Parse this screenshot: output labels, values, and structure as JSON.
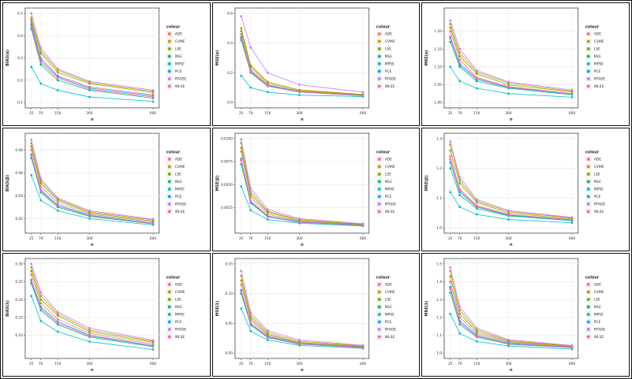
{
  "figure": {
    "background": "#ffffff",
    "x_label": "n",
    "x_ticks": [
      25,
      70,
      150,
      300,
      600
    ],
    "legend_title": "colour",
    "series_names": [
      "ADE",
      "CVME",
      "LSE",
      "MLE",
      "MPSE",
      "PCE",
      "RTADE",
      "WLSE"
    ],
    "series_colors": [
      "#F8766D",
      "#CD9600",
      "#7CAE00",
      "#00BE67",
      "#00BFC4",
      "#00A9FF",
      "#C77CFF",
      "#FF61CC"
    ],
    "grid_color": "#ebebeb",
    "panel_border_color": "#2b2b2b"
  },
  "chart_data": [
    {
      "type": "line",
      "title": "",
      "xlabel": "n",
      "ylabel": "BIAS(α)",
      "x": [
        25,
        70,
        150,
        300,
        600
      ],
      "ylim": [
        0.1,
        0.5
      ],
      "yticks": [
        0.1,
        0.2,
        0.3,
        0.4,
        0.5
      ],
      "ydecimals": 1,
      "series": [
        {
          "name": "ADE",
          "values": [
            0.46,
            0.3,
            0.22,
            0.17,
            0.135
          ]
        },
        {
          "name": "CVME",
          "values": [
            0.48,
            0.33,
            0.245,
            0.19,
            0.15
          ]
        },
        {
          "name": "LSE",
          "values": [
            0.47,
            0.32,
            0.235,
            0.185,
            0.145
          ]
        },
        {
          "name": "MLE",
          "values": [
            0.43,
            0.27,
            0.2,
            0.155,
            0.12
          ]
        },
        {
          "name": "MPSE",
          "values": [
            0.26,
            0.185,
            0.155,
            0.125,
            0.105
          ]
        },
        {
          "name": "PCE",
          "values": [
            0.45,
            0.29,
            0.215,
            0.165,
            0.13
          ]
        },
        {
          "name": "RTADE",
          "values": [
            0.5,
            0.345,
            0.25,
            0.195,
            0.155
          ]
        },
        {
          "name": "WLSE",
          "values": [
            0.44,
            0.28,
            0.21,
            0.16,
            0.125
          ]
        }
      ]
    },
    {
      "type": "line",
      "title": "",
      "xlabel": "n",
      "ylabel": "MSE(α)",
      "x": [
        25,
        70,
        150,
        300,
        600
      ],
      "ylim": [
        0.0,
        0.6
      ],
      "yticks": [
        0.0,
        0.2,
        0.4,
        0.6
      ],
      "ydecimals": 1,
      "series": [
        {
          "name": "ADE",
          "values": [
            0.46,
            0.22,
            0.12,
            0.075,
            0.05
          ]
        },
        {
          "name": "CVME",
          "values": [
            0.5,
            0.25,
            0.14,
            0.085,
            0.055
          ]
        },
        {
          "name": "LSE",
          "values": [
            0.48,
            0.24,
            0.13,
            0.08,
            0.052
          ]
        },
        {
          "name": "MLE",
          "values": [
            0.42,
            0.2,
            0.11,
            0.07,
            0.045
          ]
        },
        {
          "name": "MPSE",
          "values": [
            0.18,
            0.1,
            0.07,
            0.05,
            0.04
          ]
        },
        {
          "name": "PCE",
          "values": [
            0.44,
            0.21,
            0.115,
            0.072,
            0.047
          ]
        },
        {
          "name": "RTADE",
          "values": [
            0.58,
            0.37,
            0.2,
            0.12,
            0.07
          ]
        },
        {
          "name": "WLSE",
          "values": [
            0.43,
            0.205,
            0.112,
            0.071,
            0.046
          ]
        }
      ]
    },
    {
      "type": "line",
      "title": "",
      "xlabel": "n",
      "ylabel": "MRE(α)",
      "x": [
        25,
        70,
        150,
        300,
        600
      ],
      "ylim": [
        1.0,
        1.25
      ],
      "yticks": [
        1.0,
        1.05,
        1.1,
        1.15,
        1.2
      ],
      "ydecimals": 2,
      "series": [
        {
          "name": "ADE",
          "values": [
            1.2,
            1.12,
            1.07,
            1.045,
            1.025
          ]
        },
        {
          "name": "CVME",
          "values": [
            1.22,
            1.14,
            1.085,
            1.055,
            1.032
          ]
        },
        {
          "name": "LSE",
          "values": [
            1.21,
            1.13,
            1.08,
            1.05,
            1.03
          ]
        },
        {
          "name": "MLE",
          "values": [
            1.17,
            1.1,
            1.06,
            1.04,
            1.022
          ]
        },
        {
          "name": "MPSE",
          "values": [
            1.1,
            1.06,
            1.04,
            1.025,
            1.015
          ]
        },
        {
          "name": "PCE",
          "values": [
            1.18,
            1.105,
            1.065,
            1.042,
            1.024
          ]
        },
        {
          "name": "RTADE",
          "values": [
            1.23,
            1.15,
            1.09,
            1.058,
            1.035
          ]
        },
        {
          "name": "WLSE",
          "values": [
            1.185,
            1.11,
            1.068,
            1.043,
            1.025
          ]
        }
      ]
    },
    {
      "type": "line",
      "title": "",
      "xlabel": "n",
      "ylabel": "BIAS(β)",
      "x": [
        25,
        70,
        150,
        300,
        600
      ],
      "ylim": [
        0.012,
        0.09
      ],
      "yticks": [
        0.02,
        0.04,
        0.06,
        0.08
      ],
      "ydecimals": 2,
      "series": [
        {
          "name": "ADE",
          "values": [
            0.08,
            0.048,
            0.034,
            0.024,
            0.017
          ]
        },
        {
          "name": "CVME",
          "values": [
            0.086,
            0.053,
            0.037,
            0.026,
            0.019
          ]
        },
        {
          "name": "LSE",
          "values": [
            0.083,
            0.051,
            0.036,
            0.025,
            0.018
          ]
        },
        {
          "name": "MLE",
          "values": [
            0.073,
            0.043,
            0.03,
            0.022,
            0.0155
          ]
        },
        {
          "name": "MPSE",
          "values": [
            0.058,
            0.036,
            0.027,
            0.02,
            0.0145
          ]
        },
        {
          "name": "PCE",
          "values": [
            0.076,
            0.045,
            0.032,
            0.023,
            0.016
          ]
        },
        {
          "name": "RTADE",
          "values": [
            0.089,
            0.055,
            0.038,
            0.027,
            0.0195
          ]
        },
        {
          "name": "WLSE",
          "values": [
            0.075,
            0.044,
            0.031,
            0.0225,
            0.0158
          ]
        }
      ]
    },
    {
      "type": "line",
      "title": "",
      "xlabel": "n",
      "ylabel": "MSE(β)",
      "x": [
        25,
        70,
        150,
        300,
        600
      ],
      "ylim": [
        0.0003,
        0.01
      ],
      "yticks": [
        0.0025,
        0.005,
        0.0075,
        0.01
      ],
      "ydecimals": 4,
      "series": [
        {
          "name": "ADE",
          "values": [
            0.0086,
            0.0036,
            0.0018,
            0.001,
            0.0006
          ]
        },
        {
          "name": "CVME",
          "values": [
            0.0095,
            0.0042,
            0.0021,
            0.0012,
            0.0007
          ]
        },
        {
          "name": "LSE",
          "values": [
            0.009,
            0.0039,
            0.002,
            0.0011,
            0.00065
          ]
        },
        {
          "name": "MLE",
          "values": [
            0.0072,
            0.003,
            0.0015,
            0.0009,
            0.00055
          ]
        },
        {
          "name": "MPSE",
          "values": [
            0.0048,
            0.0022,
            0.0012,
            0.0008,
            0.0005
          ]
        },
        {
          "name": "PCE",
          "values": [
            0.0078,
            0.0032,
            0.0016,
            0.00095,
            0.00058
          ]
        },
        {
          "name": "RTADE",
          "values": [
            0.0099,
            0.0046,
            0.0023,
            0.0013,
            0.00075
          ]
        },
        {
          "name": "WLSE",
          "values": [
            0.0076,
            0.0031,
            0.00155,
            0.00092,
            0.00057
          ]
        }
      ]
    },
    {
      "type": "line",
      "title": "",
      "xlabel": "n",
      "ylabel": "MRE(β)",
      "x": [
        25,
        70,
        150,
        300,
        600
      ],
      "ylim": [
        1.0,
        1.3
      ],
      "yticks": [
        1.0,
        1.1,
        1.2,
        1.3
      ],
      "ydecimals": 1,
      "series": [
        {
          "name": "ADE",
          "values": [
            1.24,
            1.13,
            1.075,
            1.045,
            1.027
          ]
        },
        {
          "name": "CVME",
          "values": [
            1.28,
            1.16,
            1.09,
            1.055,
            1.033
          ]
        },
        {
          "name": "LSE",
          "values": [
            1.26,
            1.15,
            1.085,
            1.05,
            1.03
          ]
        },
        {
          "name": "MLE",
          "values": [
            1.2,
            1.11,
            1.065,
            1.04,
            1.024
          ]
        },
        {
          "name": "MPSE",
          "values": [
            1.12,
            1.07,
            1.045,
            1.028,
            1.017
          ]
        },
        {
          "name": "PCE",
          "values": [
            1.22,
            1.12,
            1.07,
            1.042,
            1.025
          ]
        },
        {
          "name": "RTADE",
          "values": [
            1.29,
            1.17,
            1.095,
            1.058,
            1.035
          ]
        },
        {
          "name": "WLSE",
          "values": [
            1.23,
            1.125,
            1.072,
            1.044,
            1.026
          ]
        }
      ]
    },
    {
      "type": "line",
      "title": "",
      "xlabel": "n",
      "ylabel": "BIAS(λ)",
      "x": [
        25,
        70,
        150,
        300,
        600
      ],
      "ylim": [
        0.05,
        0.3
      ],
      "yticks": [
        0.1,
        0.15,
        0.2,
        0.25,
        0.3
      ],
      "ydecimals": 2,
      "series": [
        {
          "name": "ADE",
          "values": [
            0.27,
            0.19,
            0.145,
            0.105,
            0.075
          ]
        },
        {
          "name": "CVME",
          "values": [
            0.29,
            0.21,
            0.16,
            0.115,
            0.083
          ]
        },
        {
          "name": "LSE",
          "values": [
            0.28,
            0.2,
            0.155,
            0.11,
            0.08
          ]
        },
        {
          "name": "MLE",
          "values": [
            0.245,
            0.17,
            0.13,
            0.095,
            0.068
          ]
        },
        {
          "name": "MPSE",
          "values": [
            0.21,
            0.14,
            0.11,
            0.082,
            0.06
          ]
        },
        {
          "name": "PCE",
          "values": [
            0.255,
            0.18,
            0.138,
            0.1,
            0.071
          ]
        },
        {
          "name": "RTADE",
          "values": [
            0.3,
            0.22,
            0.165,
            0.12,
            0.086
          ]
        },
        {
          "name": "WLSE",
          "values": [
            0.25,
            0.175,
            0.134,
            0.098,
            0.07
          ]
        }
      ]
    },
    {
      "type": "line",
      "title": "",
      "xlabel": "n",
      "ylabel": "MSE(λ)",
      "x": [
        25,
        70,
        150,
        300,
        600
      ],
      "ylim": [
        0.0,
        0.15
      ],
      "yticks": [
        0.0,
        0.05,
        0.1,
        0.15
      ],
      "ydecimals": 2,
      "series": [
        {
          "name": "ADE",
          "values": [
            0.115,
            0.055,
            0.03,
            0.017,
            0.01
          ]
        },
        {
          "name": "CVME",
          "values": [
            0.13,
            0.063,
            0.035,
            0.02,
            0.012
          ]
        },
        {
          "name": "LSE",
          "values": [
            0.122,
            0.059,
            0.032,
            0.018,
            0.011
          ]
        },
        {
          "name": "MLE",
          "values": [
            0.1,
            0.047,
            0.026,
            0.015,
            0.009
          ]
        },
        {
          "name": "MPSE",
          "values": [
            0.075,
            0.037,
            0.022,
            0.013,
            0.008
          ]
        },
        {
          "name": "PCE",
          "values": [
            0.106,
            0.05,
            0.028,
            0.016,
            0.0095
          ]
        },
        {
          "name": "RTADE",
          "values": [
            0.138,
            0.068,
            0.038,
            0.022,
            0.013
          ]
        },
        {
          "name": "WLSE",
          "values": [
            0.104,
            0.049,
            0.027,
            0.0155,
            0.0092
          ]
        }
      ]
    },
    {
      "type": "line",
      "title": "",
      "xlabel": "n",
      "ylabel": "MRE(λ)",
      "x": [
        25,
        70,
        150,
        300,
        600
      ],
      "ylim": [
        1.0,
        1.5
      ],
      "yticks": [
        1.0,
        1.1,
        1.2,
        1.3,
        1.4,
        1.5
      ],
      "ydecimals": 1,
      "series": [
        {
          "name": "ADE",
          "values": [
            1.4,
            1.2,
            1.11,
            1.06,
            1.035
          ]
        },
        {
          "name": "CVME",
          "values": [
            1.46,
            1.24,
            1.13,
            1.07,
            1.04
          ]
        },
        {
          "name": "LSE",
          "values": [
            1.43,
            1.22,
            1.12,
            1.065,
            1.038
          ]
        },
        {
          "name": "MLE",
          "values": [
            1.34,
            1.16,
            1.09,
            1.05,
            1.03
          ]
        },
        {
          "name": "MPSE",
          "values": [
            1.22,
            1.11,
            1.065,
            1.04,
            1.022
          ]
        },
        {
          "name": "PCE",
          "values": [
            1.37,
            1.18,
            1.1,
            1.055,
            1.032
          ]
        },
        {
          "name": "RTADE",
          "values": [
            1.48,
            1.26,
            1.14,
            1.075,
            1.043
          ]
        },
        {
          "name": "WLSE",
          "values": [
            1.36,
            1.17,
            1.095,
            1.052,
            1.031
          ]
        }
      ]
    }
  ]
}
